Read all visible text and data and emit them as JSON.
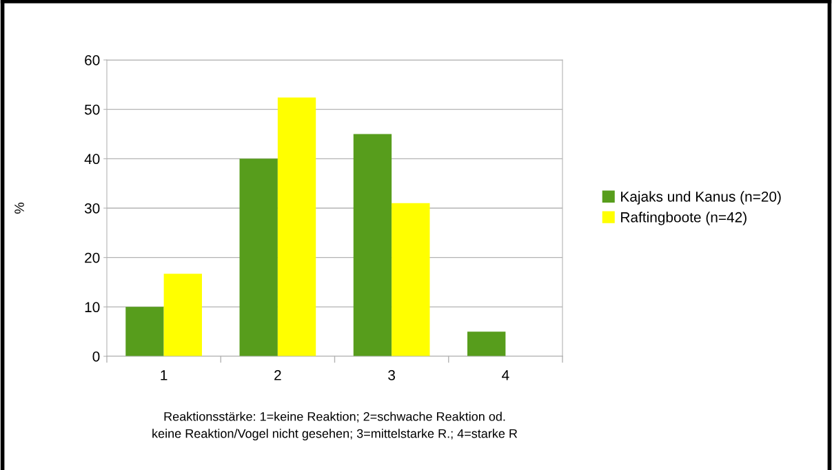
{
  "chart_data": {
    "type": "bar",
    "categories": [
      "1",
      "2",
      "3",
      "4"
    ],
    "xlabel": "Reaktionsstärke: 1=keine Reaktion; 2=schwache Reaktion od.\nkeine Reaktion/Vogel nicht gesehen; 3=mittelstarke R.; 4=starke R",
    "ylabel": "%",
    "series": [
      {
        "name": "Kajaks und Kanus (n=20)",
        "color": "#579d1c",
        "values": [
          10,
          40,
          45,
          5
        ]
      },
      {
        "name": "Raftingboote (n=42)",
        "color": "#ffff00",
        "values": [
          16.7,
          52.4,
          31,
          0
        ]
      }
    ],
    "ylim": [
      0,
      60
    ],
    "yticks": [
      0,
      10,
      20,
      30,
      40,
      50,
      60
    ],
    "grid": "y",
    "legend": "right"
  }
}
